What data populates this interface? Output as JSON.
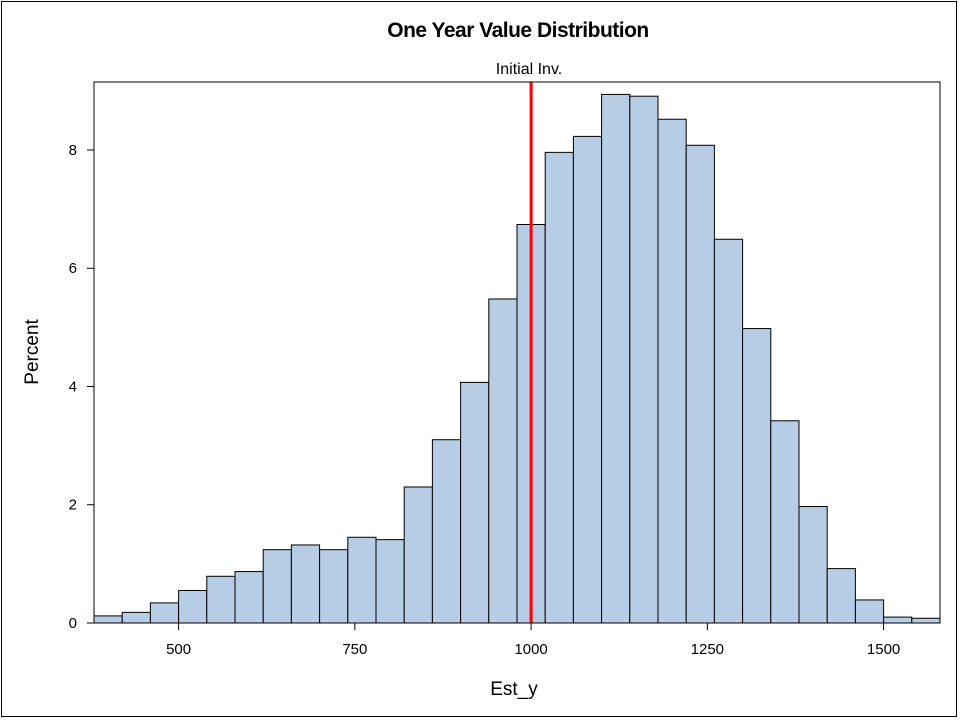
{
  "chart_data": {
    "type": "bar",
    "subtype": "histogram",
    "title": "One Year Value Distribution",
    "xlabel": "Est_y",
    "ylabel": "Percent",
    "xlim": [
      380,
      1580
    ],
    "ylim": [
      0,
      9.15
    ],
    "bin_width": 40,
    "bins": [
      {
        "start": 380,
        "end": 420,
        "value": 0.12
      },
      {
        "start": 420,
        "end": 460,
        "value": 0.18
      },
      {
        "start": 460,
        "end": 500,
        "value": 0.34
      },
      {
        "start": 500,
        "end": 540,
        "value": 0.55
      },
      {
        "start": 540,
        "end": 580,
        "value": 0.79
      },
      {
        "start": 580,
        "end": 620,
        "value": 0.87
      },
      {
        "start": 620,
        "end": 660,
        "value": 1.24
      },
      {
        "start": 660,
        "end": 700,
        "value": 1.32
      },
      {
        "start": 700,
        "end": 740,
        "value": 1.24
      },
      {
        "start": 740,
        "end": 780,
        "value": 1.45
      },
      {
        "start": 780,
        "end": 820,
        "value": 1.41
      },
      {
        "start": 820,
        "end": 860,
        "value": 2.3
      },
      {
        "start": 860,
        "end": 900,
        "value": 3.1
      },
      {
        "start": 900,
        "end": 940,
        "value": 4.07
      },
      {
        "start": 940,
        "end": 980,
        "value": 5.48
      },
      {
        "start": 980,
        "end": 1020,
        "value": 6.74
      },
      {
        "start": 1020,
        "end": 1060,
        "value": 7.96
      },
      {
        "start": 1060,
        "end": 1100,
        "value": 8.23
      },
      {
        "start": 1100,
        "end": 1140,
        "value": 8.94
      },
      {
        "start": 1140,
        "end": 1180,
        "value": 8.91
      },
      {
        "start": 1180,
        "end": 1220,
        "value": 8.52
      },
      {
        "start": 1220,
        "end": 1260,
        "value": 8.08
      },
      {
        "start": 1260,
        "end": 1300,
        "value": 6.49
      },
      {
        "start": 1300,
        "end": 1340,
        "value": 4.98
      },
      {
        "start": 1340,
        "end": 1380,
        "value": 3.42
      },
      {
        "start": 1380,
        "end": 1420,
        "value": 1.97
      },
      {
        "start": 1420,
        "end": 1460,
        "value": 0.92
      },
      {
        "start": 1460,
        "end": 1500,
        "value": 0.39
      },
      {
        "start": 1500,
        "end": 1540,
        "value": 0.1
      },
      {
        "start": 1540,
        "end": 1580,
        "value": 0.08
      }
    ],
    "x_ticks": [
      {
        "value": 500,
        "label": "500"
      },
      {
        "value": 750,
        "label": "750"
      },
      {
        "value": 1000,
        "label": "1000"
      },
      {
        "value": 1250,
        "label": "1250"
      },
      {
        "value": 1500,
        "label": "1500"
      }
    ],
    "y_ticks": [
      {
        "value": 0,
        "label": "0"
      },
      {
        "value": 2,
        "label": "2"
      },
      {
        "value": 4,
        "label": "4"
      },
      {
        "value": 6,
        "label": "6"
      },
      {
        "value": 8,
        "label": "8"
      }
    ],
    "reference_line": {
      "value": 1000,
      "label": "Initial Inv.",
      "color": "#ff0000"
    },
    "bar_fill": "#b7cde5",
    "bar_stroke": "#000000",
    "grid": false
  }
}
